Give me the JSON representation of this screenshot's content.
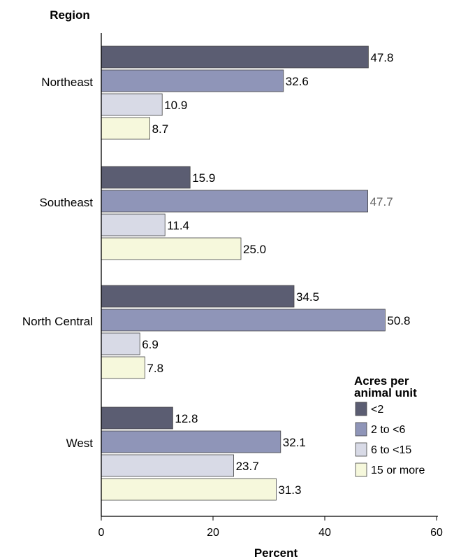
{
  "chart_data": {
    "type": "bar",
    "orientation": "horizontal",
    "y_axis_title": "Region",
    "xlabel": "Percent",
    "xlim": [
      0,
      60
    ],
    "x_ticks": [
      "0",
      "20",
      "40",
      "60"
    ],
    "categories": [
      "Northeast",
      "Southeast",
      "North Central",
      "West"
    ],
    "series": [
      {
        "name": "<2",
        "color": "#5b5d72",
        "values": [
          47.8,
          15.9,
          34.5,
          12.8
        ],
        "labels": [
          "47.8",
          "15.9",
          "34.5",
          "12.8"
        ]
      },
      {
        "name": "2 to <6",
        "color": "#8f95b8",
        "values": [
          32.6,
          47.7,
          50.8,
          32.1
        ],
        "labels": [
          "32.6",
          "47.7",
          "50.8",
          "32.1"
        ]
      },
      {
        "name": "6 to <15",
        "color": "#d8dae6",
        "values": [
          10.9,
          11.4,
          6.9,
          23.7
        ],
        "labels": [
          "10.9",
          "11.4",
          "6.9",
          "23.7"
        ]
      },
      {
        "name": "15 or more",
        "color": "#f6f8dc",
        "values": [
          8.7,
          25.0,
          7.8,
          31.3
        ],
        "labels": [
          "8.7",
          "25.0",
          "7.8",
          "31.3"
        ]
      }
    ],
    "legend": {
      "title": "Acres per animal unit",
      "position": "bottom-right"
    },
    "grid": false
  }
}
